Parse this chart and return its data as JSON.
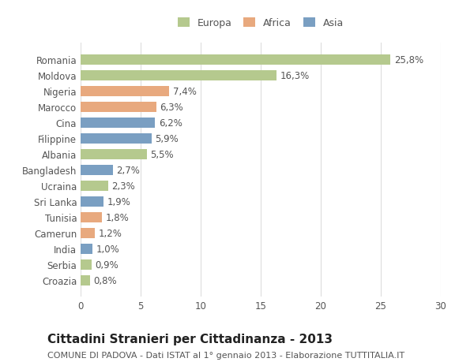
{
  "categories": [
    "Romania",
    "Moldova",
    "Nigeria",
    "Marocco",
    "Cina",
    "Filippine",
    "Albania",
    "Bangladesh",
    "Ucraina",
    "Sri Lanka",
    "Tunisia",
    "Camerun",
    "India",
    "Serbia",
    "Croazia"
  ],
  "values": [
    25.8,
    16.3,
    7.4,
    6.3,
    6.2,
    5.9,
    5.5,
    2.7,
    2.3,
    1.9,
    1.8,
    1.2,
    1.0,
    0.9,
    0.8
  ],
  "labels": [
    "25,8%",
    "16,3%",
    "7,4%",
    "6,3%",
    "6,2%",
    "5,9%",
    "5,5%",
    "2,7%",
    "2,3%",
    "1,9%",
    "1,8%",
    "1,2%",
    "1,0%",
    "0,9%",
    "0,8%"
  ],
  "continents": [
    "Europa",
    "Europa",
    "Africa",
    "Africa",
    "Asia",
    "Asia",
    "Europa",
    "Asia",
    "Europa",
    "Asia",
    "Africa",
    "Africa",
    "Asia",
    "Europa",
    "Europa"
  ],
  "colors": {
    "Europa": "#b5c98e",
    "Africa": "#e8a97e",
    "Asia": "#7a9fc2"
  },
  "legend_colors": {
    "Europa": "#b5c98e",
    "Africa": "#e8a97e",
    "Asia": "#7a9fc2"
  },
  "xlim": [
    0,
    30
  ],
  "xticks": [
    0,
    5,
    10,
    15,
    20,
    25,
    30
  ],
  "title": "Cittadini Stranieri per Cittadinanza - 2013",
  "subtitle": "COMUNE DI PADOVA - Dati ISTAT al 1° gennaio 2013 - Elaborazione TUTTITALIA.IT",
  "background_color": "#ffffff",
  "grid_color": "#dddddd",
  "bar_height": 0.65,
  "label_fontsize": 8.5,
  "tick_fontsize": 8.5,
  "title_fontsize": 11,
  "subtitle_fontsize": 8
}
